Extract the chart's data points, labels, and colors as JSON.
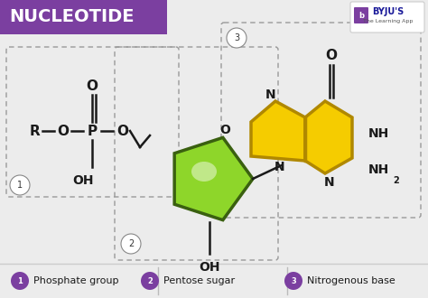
{
  "title": "NUCLEOTIDE",
  "title_bg": "#7B3FA0",
  "title_color": "#FFFFFF",
  "bg_color": "#ECECEC",
  "legend": [
    {
      "num": "1",
      "label": "Phosphate group"
    },
    {
      "num": "2",
      "label": "Pentose sugar"
    },
    {
      "num": "3",
      "label": "Nitrogenous base"
    }
  ],
  "legend_color": "#7B3FA0",
  "box_color": "#999999",
  "pentagon_fill": "#8ED62A",
  "pentagon_edge": "#3A6010",
  "pentagon_highlight": "#D4F07A",
  "base_fill": "#F5CC00",
  "base_edge": "#B08800",
  "text_color": "#1A1A1A",
  "bond_color": "#1A1A1A",
  "bond_lw": 1.8
}
